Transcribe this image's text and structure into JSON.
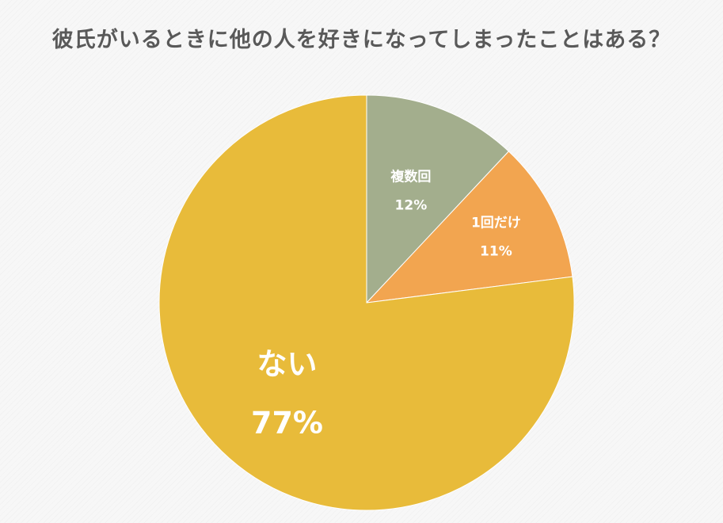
{
  "chart_data": {
    "type": "pie",
    "title": "彼氏がいるときに他の人を好きになってしまったことはある？",
    "slices": [
      {
        "label": "複数回",
        "value": 12,
        "value_label": "12%",
        "color": "#a3ae8d"
      },
      {
        "label": "1回だけ",
        "value": 11,
        "value_label": "11%",
        "color": "#f2a550"
      },
      {
        "label": "ない",
        "value": 77,
        "value_label": "77%",
        "color": "#e8bb3a"
      }
    ],
    "start_angle": "12 o'clock",
    "direction": "clockwise",
    "legend": "none"
  }
}
